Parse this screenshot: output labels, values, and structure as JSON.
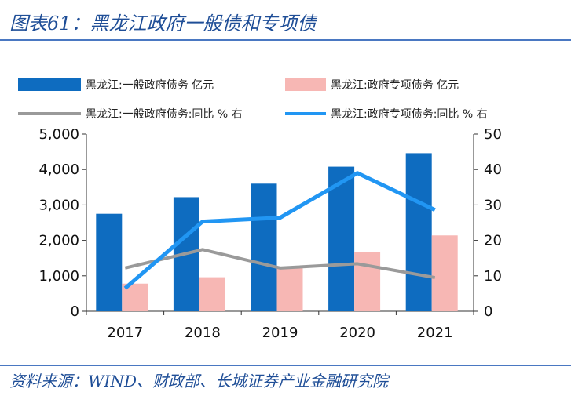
{
  "header": {
    "title": "图表61：黑龙江政府一般债和专项债"
  },
  "footer": {
    "source": "资料来源：WIND、财政部、长城证券产业金融研究院"
  },
  "colors": {
    "bar_general": "#0e6cc0",
    "bar_special": "#f7b7b4",
    "line_general": "#9a9a9a",
    "line_special": "#2196f3",
    "rule": "#4a78c2",
    "title": "#1f4e97"
  },
  "chart_data": {
    "type": "bar",
    "title": "黑龙江政府一般债和专项债",
    "categories": [
      "2017",
      "2018",
      "2019",
      "2020",
      "2021"
    ],
    "series": [
      {
        "name": "黑龙江:一般政府债务 亿元",
        "kind": "bar",
        "axis": "left",
        "values": [
          2750,
          3220,
          3600,
          4080,
          4460
        ]
      },
      {
        "name": "黑龙江:政府专项债务 亿元",
        "kind": "bar",
        "axis": "left",
        "values": [
          780,
          960,
          1230,
          1680,
          2140
        ]
      },
      {
        "name": "黑龙江:一般政府债务:同比 % 右",
        "kind": "line",
        "axis": "right",
        "values": [
          12.2,
          17.4,
          12.2,
          13.4,
          9.5
        ]
      },
      {
        "name": "黑龙江:政府专项债务:同比 % 右",
        "kind": "line",
        "axis": "right",
        "values": [
          6.5,
          25.3,
          26.4,
          39.0,
          28.6
        ]
      }
    ],
    "ylim_left": [
      0,
      5000
    ],
    "ylim_right": [
      0,
      50
    ],
    "yticks_left": [
      "0",
      "1,000",
      "2,000",
      "3,000",
      "4,000",
      "5,000"
    ],
    "yticks_right": [
      "0",
      "10",
      "20",
      "30",
      "40",
      "50"
    ],
    "legend_position": "top"
  }
}
